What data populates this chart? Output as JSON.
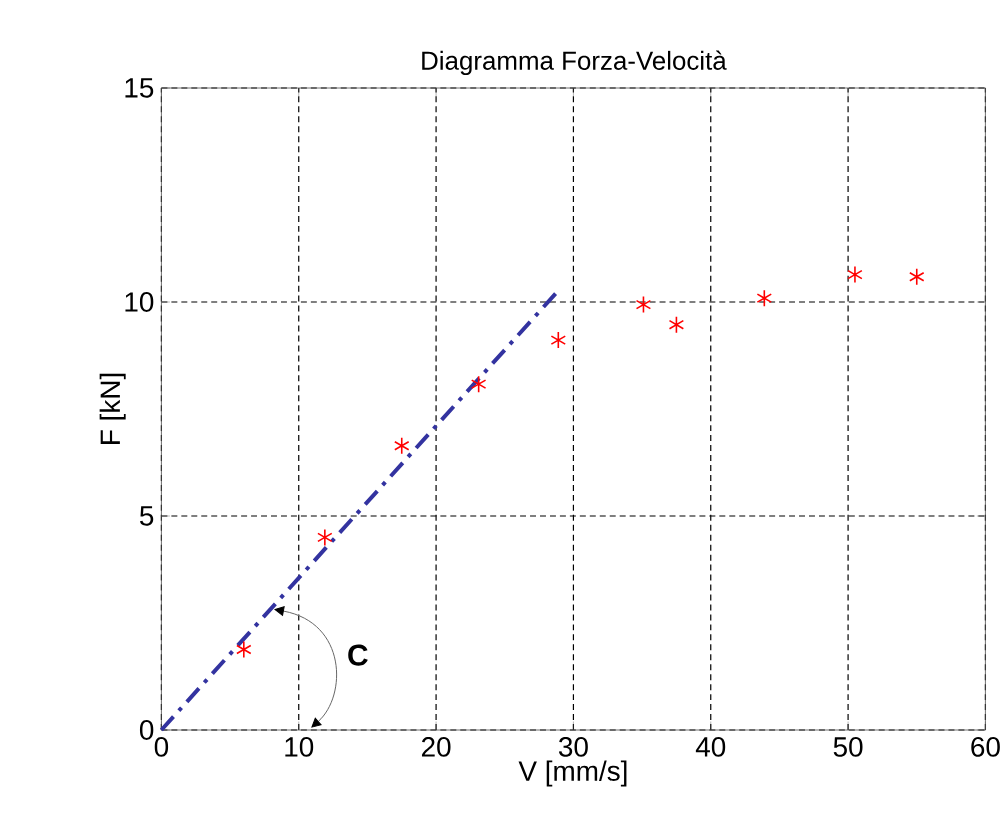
{
  "chart_data": {
    "type": "scatter",
    "title": "Diagramma Forza-Velocità",
    "xlabel": "V [mm/s]",
    "ylabel": "F [kN]",
    "xlim": [
      0,
      60
    ],
    "ylim": [
      0,
      15
    ],
    "xticks": [
      0,
      10,
      20,
      30,
      40,
      50,
      60
    ],
    "yticks": [
      0,
      5,
      10,
      15
    ],
    "grid": true,
    "annotations": [
      "C"
    ],
    "series": [
      {
        "color": "#ff0000",
        "marker": "cross",
        "x": [
          6.0,
          11.9,
          17.5,
          23.1,
          28.9,
          35.1,
          37.5,
          43.9,
          50.5,
          55.0
        ],
        "values": [
          1.88,
          4.5,
          6.64,
          8.08,
          9.11,
          9.94,
          9.47,
          10.09,
          10.64,
          10.59
        ]
      },
      {
        "type": "line",
        "color": "#3333a0",
        "line_style": "dashdot",
        "x": [
          0,
          28.8
        ],
        "values": [
          0,
          10.23
        ]
      }
    ]
  }
}
